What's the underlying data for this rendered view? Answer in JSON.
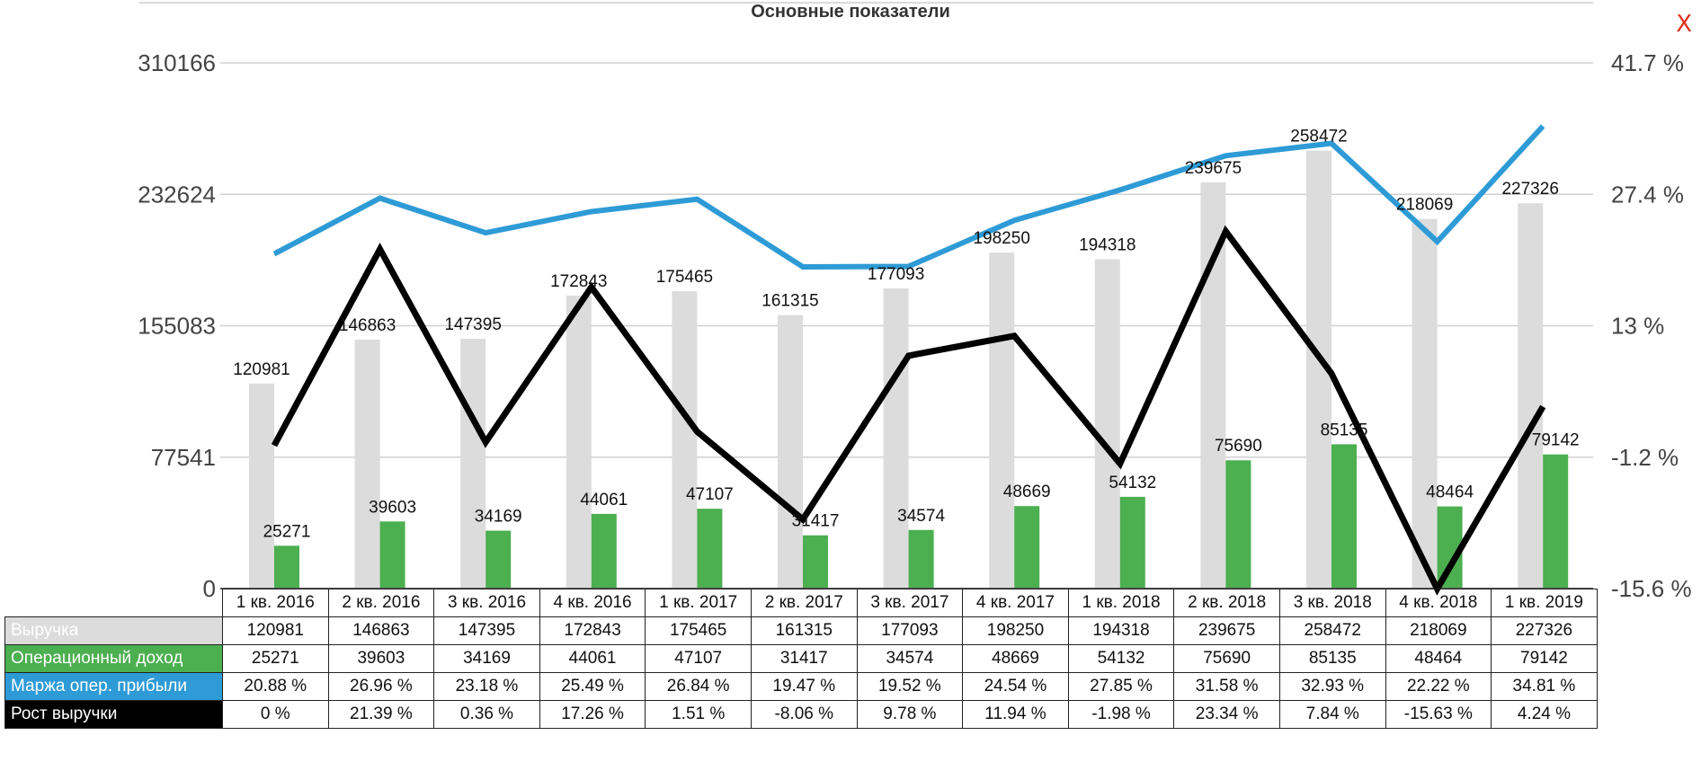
{
  "title": "Основные показатели",
  "close_label": "X",
  "colors": {
    "revenue": "#dcdcdc",
    "op_income": "#4caf50",
    "margin": "#2e9bd6",
    "growth": "#000000",
    "close": "#e0301e"
  },
  "chart_data": {
    "type": "bar",
    "title": "Основные показатели",
    "categories": [
      "1 кв. 2016",
      "2 кв. 2016",
      "3 кв. 2016",
      "4 кв. 2016",
      "1 кв. 2017",
      "2 кв. 2017",
      "3 кв. 2017",
      "4 кв. 2017",
      "1 кв. 2018",
      "2 кв. 2018",
      "3 кв. 2018",
      "4 кв. 2018",
      "1 кв. 2019"
    ],
    "left_axis": {
      "ticks": [
        "0",
        "77541",
        "155083",
        "232624",
        "310166"
      ],
      "ylim": [
        0,
        310166
      ]
    },
    "right_axis": {
      "ticks": [
        "-15.6 %",
        "-1.2 %",
        "13 %",
        "27.4 %",
        "41.7 %"
      ],
      "ylim": [
        -15.6,
        41.7
      ]
    },
    "grid": true,
    "series": [
      {
        "name": "Выручка",
        "type": "bar",
        "axis": "left",
        "values": [
          120981,
          146863,
          147395,
          172843,
          175465,
          161315,
          177093,
          198250,
          194318,
          239675,
          258472,
          218069,
          227326
        ],
        "display": [
          "120981",
          "146863",
          "147395",
          "172843",
          "175465",
          "161315",
          "177093",
          "198250",
          "194318",
          "239675",
          "258472",
          "218069",
          "227326"
        ]
      },
      {
        "name": "Операционный доход",
        "type": "bar",
        "axis": "left",
        "values": [
          25271,
          39603,
          34169,
          44061,
          47107,
          31417,
          34574,
          48669,
          54132,
          75690,
          85135,
          48464,
          79142
        ],
        "display": [
          "25271",
          "39603",
          "34169",
          "44061",
          "47107",
          "31417",
          "34574",
          "48669",
          "54132",
          "75690",
          "85135",
          "48464",
          "79142"
        ]
      },
      {
        "name": "Маржа опер. прибыли",
        "type": "line",
        "axis": "right",
        "values": [
          20.88,
          26.96,
          23.18,
          25.49,
          26.84,
          19.47,
          19.52,
          24.54,
          27.85,
          31.58,
          32.93,
          22.22,
          34.81
        ],
        "display": [
          "20.88 %",
          "26.96 %",
          "23.18 %",
          "25.49 %",
          "26.84 %",
          "19.47 %",
          "19.52 %",
          "24.54 %",
          "27.85 %",
          "31.58 %",
          "32.93 %",
          "22.22 %",
          "34.81 %"
        ]
      },
      {
        "name": "Рост выручки",
        "type": "line",
        "axis": "right",
        "values": [
          0,
          21.39,
          0.36,
          17.26,
          1.51,
          -8.06,
          9.78,
          11.94,
          -1.98,
          23.34,
          7.84,
          -15.63,
          4.24
        ],
        "display": [
          "0 %",
          "21.39 %",
          "0.36 %",
          "17.26 %",
          "1.51 %",
          "-8.06 %",
          "9.78 %",
          "11.94 %",
          "-1.98 %",
          "23.34 %",
          "7.84 %",
          "-15.63 %",
          "4.24 %"
        ]
      }
    ]
  }
}
